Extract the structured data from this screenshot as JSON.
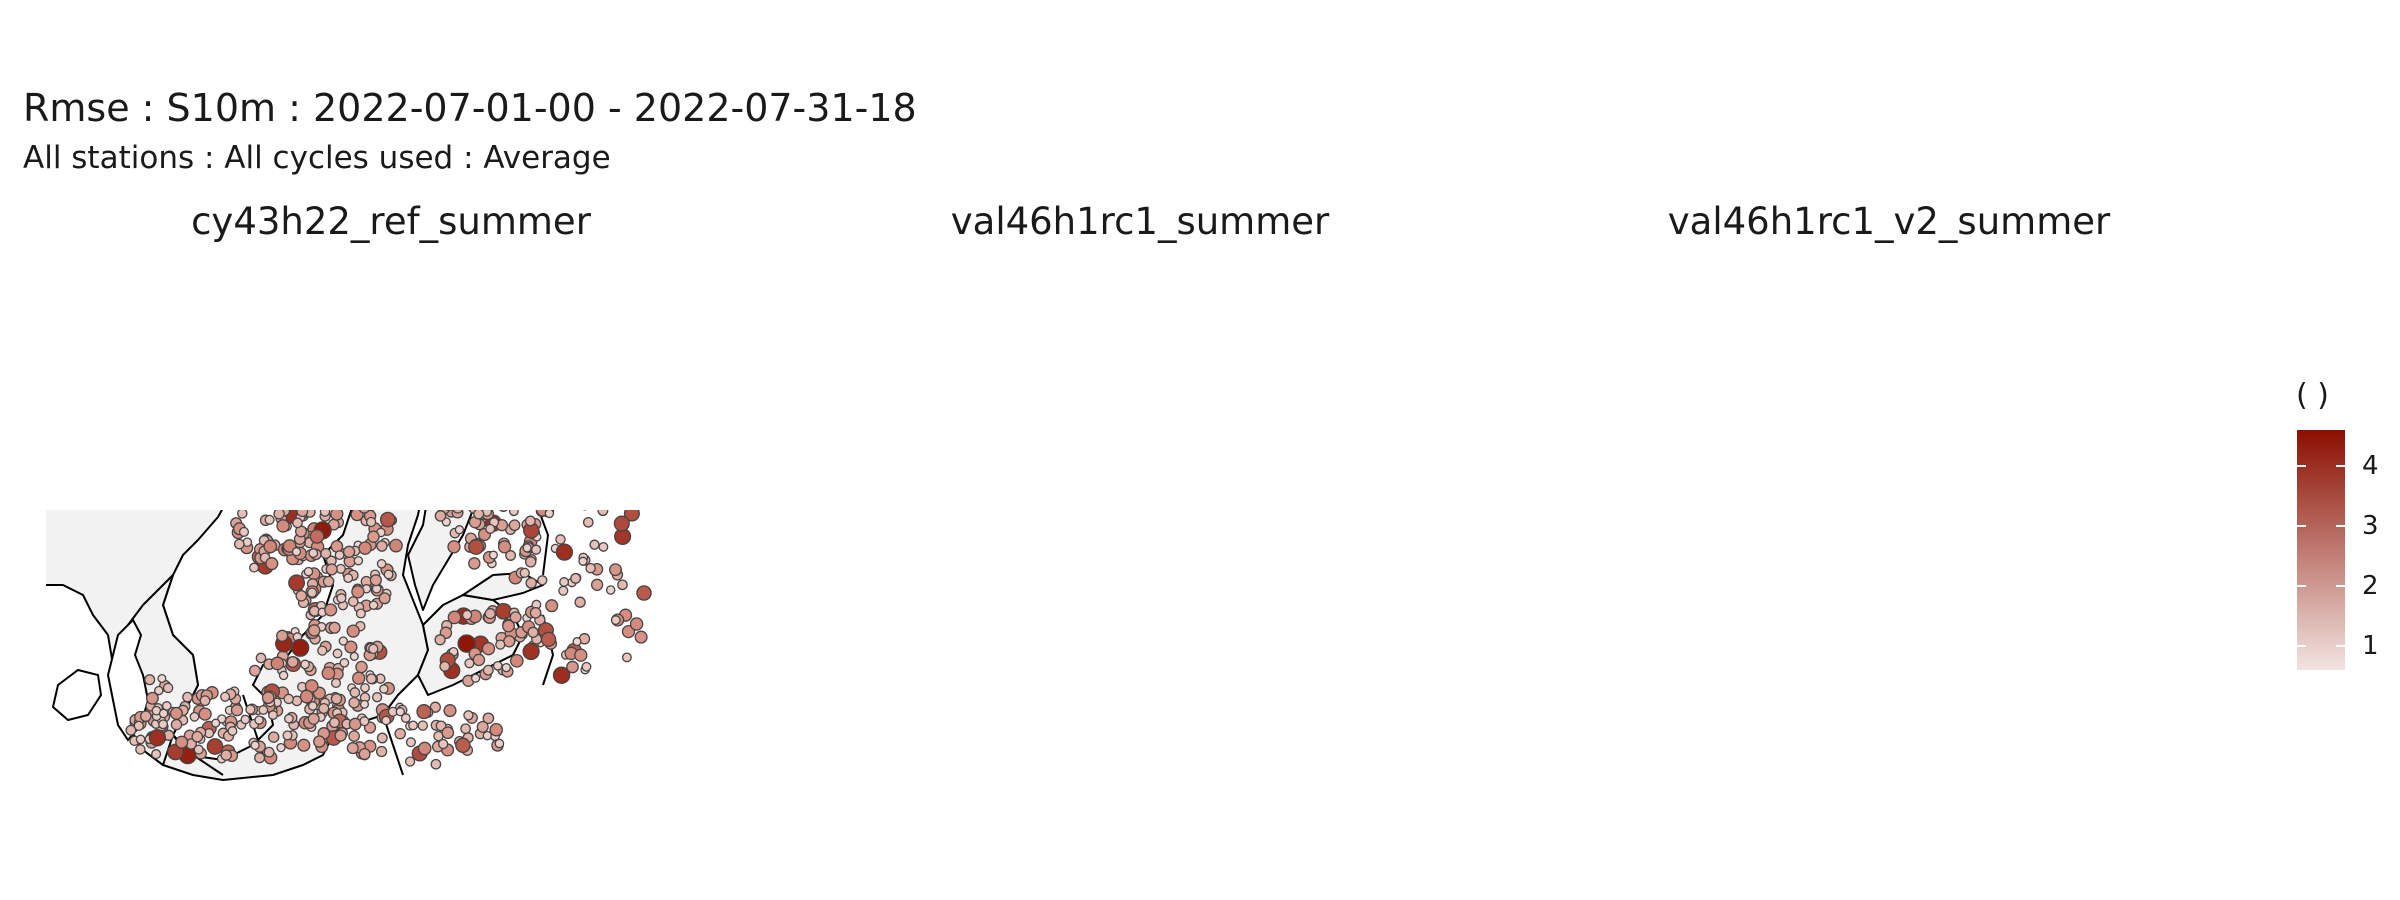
{
  "title": "Rmse : S10m : 2022-07-01-00 - 2022-07-31-18",
  "subtitle": "All stations : All cycles used : Average",
  "panels": [
    {
      "label": "cy43h22_ref_summer",
      "seed": 11
    },
    {
      "label": "val46h1rc1_summer",
      "seed": 23
    },
    {
      "label": "val46h1rc1_v2_summer",
      "seed": 37
    }
  ],
  "legend": {
    "title": "( )",
    "min": 0.6,
    "max": 4.6,
    "ticks": [
      1,
      2,
      3,
      4
    ],
    "tick_labels": [
      "1",
      "2",
      "3",
      "4"
    ],
    "low_color": "#f2e4e1",
    "high_color": "#8b0f00"
  },
  "colors": {
    "sea": "#f2f2f2",
    "land": "#ffffff",
    "coast": "#000000",
    "point_stroke": "#444444"
  }
}
